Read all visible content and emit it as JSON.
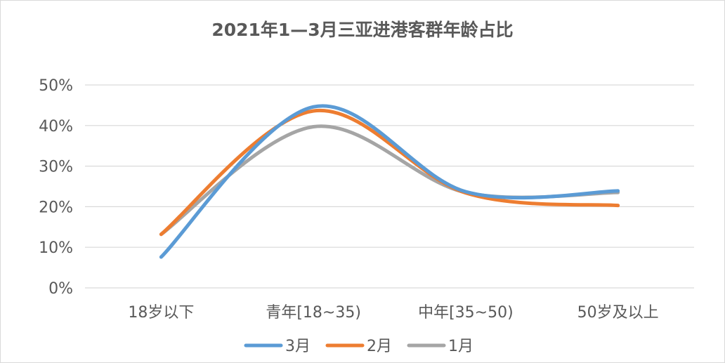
{
  "chart_data": {
    "type": "line",
    "title": "2021年1—3月三亚进港客群年龄占比",
    "categories": [
      "18岁以下",
      "青年[18~35)",
      "中年[35~50)",
      "50岁及以上"
    ],
    "yticks": [
      "0%",
      "10%",
      "20%",
      "30%",
      "40%",
      "50%"
    ],
    "ylim": [
      0,
      50
    ],
    "smooth": true,
    "grid": true,
    "legend_position": "bottom",
    "series": [
      {
        "name": "3月",
        "color": "#5b9bd5",
        "values": [
          7.6,
          44.6,
          23.7,
          23.9
        ]
      },
      {
        "name": "2月",
        "color": "#ed7d31",
        "values": [
          13.2,
          43.6,
          23.4,
          20.3
        ]
      },
      {
        "name": "1月",
        "color": "#a5a5a5",
        "values": [
          13.2,
          39.7,
          23.5,
          23.5
        ]
      }
    ]
  }
}
